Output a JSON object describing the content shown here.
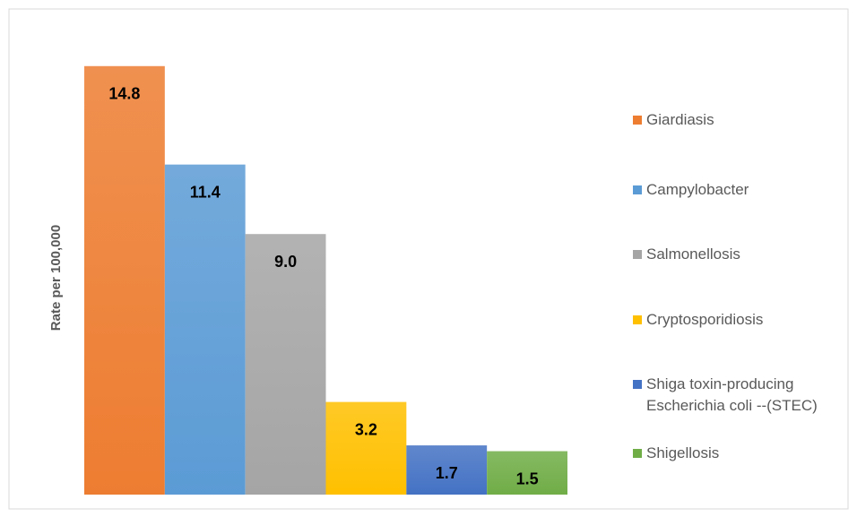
{
  "chart_data": {
    "type": "bar",
    "y_axis_label": "Rate per 100,000",
    "categories": [
      "Giardiasis",
      "Campylobacter",
      "Salmonellosis",
      "Cryptosporidiosis",
      "Shiga toxin-producing Escherichia coli --(STEC)",
      "Shigellosis"
    ],
    "values": [
      14.8,
      11.4,
      9.0,
      3.2,
      1.7,
      1.5
    ],
    "value_labels": [
      "14.8",
      "11.4",
      "9.0",
      "3.2",
      "1.7",
      "1.5"
    ],
    "colors": [
      "#ed7d31",
      "#5b9bd5",
      "#a5a5a5",
      "#ffc000",
      "#4472c4",
      "#70ad47"
    ],
    "ylim": [
      0,
      16
    ],
    "legend": "right"
  }
}
